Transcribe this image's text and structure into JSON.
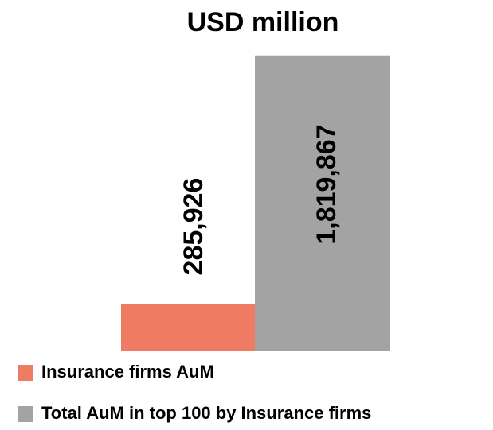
{
  "chart_data": {
    "type": "bar",
    "title": "USD million",
    "categories": [
      null
    ],
    "series": [
      {
        "name": "Insurance firms AuM",
        "color": "#ee7b62",
        "values": [
          285926
        ],
        "value_labels": [
          "285,926"
        ]
      },
      {
        "name": "Total AuM in top 100 by Insurance firms",
        "color": "#a3a3a3",
        "values": [
          1819867
        ],
        "value_labels": [
          "1,819,867"
        ]
      }
    ],
    "ylim": [
      0,
      2000000
    ]
  }
}
